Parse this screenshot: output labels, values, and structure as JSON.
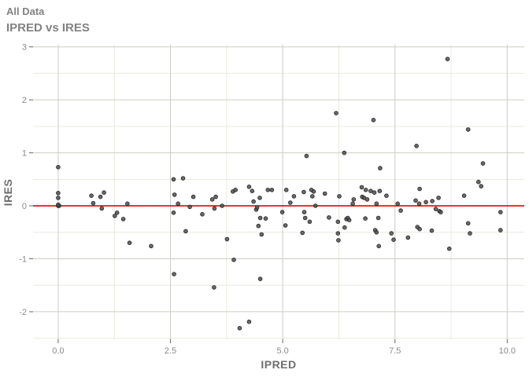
{
  "page": {
    "title": "All Data",
    "subtitle": "IPRED vs IRES"
  },
  "colors": {
    "background": "#ffffff",
    "title_text": "#828282",
    "axis_title_text": "#6e6e6e",
    "tick_label_text": "#8a8a8a",
    "major_grid": "#cdcdc5",
    "minor_grid": "#e9e9e0",
    "tick_mark": "#666666",
    "reference_line": "#ee0000",
    "point_fill": "#4e4e4e",
    "point_stroke": "#262626"
  },
  "chart_data": {
    "type": "scatter",
    "title": "All Data",
    "subtitle": "IPRED vs IRES",
    "xlabel": "IPRED",
    "ylabel": "IRES",
    "xlim": [
      -0.56,
      10.38
    ],
    "ylim": [
      -2.52,
      3.04
    ],
    "grid": true,
    "legend": "none",
    "x_ticks": {
      "values": [
        0,
        2.5,
        5,
        7.5,
        10
      ],
      "labels": [
        "0.0",
        "2.5",
        "5.0",
        "7.5",
        "10.0"
      ]
    },
    "y_ticks": {
      "values": [
        3,
        2,
        1,
        0,
        -1,
        -2
      ],
      "labels": [
        "3",
        "2",
        "1",
        "0",
        "-1",
        "-2"
      ]
    },
    "x_minor": [
      1.25,
      3.75,
      6.25,
      8.75
    ],
    "y_minor": [
      2.5,
      1.5,
      0.5,
      -0.5,
      -1.5,
      -2.5
    ],
    "reference_line": {
      "y": 0
    },
    "points": [
      [
        0.0,
        0.73
      ],
      [
        0.0,
        0.24
      ],
      [
        0.0,
        0.15
      ],
      [
        0.0,
        0.0
      ],
      [
        0.02,
        0.0
      ],
      [
        0.0,
        0.02
      ],
      [
        0.74,
        0.19
      ],
      [
        0.78,
        0.05
      ],
      [
        0.94,
        0.17
      ],
      [
        1.02,
        0.25
      ],
      [
        0.97,
        -0.05
      ],
      [
        1.26,
        -0.19
      ],
      [
        1.31,
        -0.13
      ],
      [
        1.45,
        -0.25
      ],
      [
        1.54,
        0.04
      ],
      [
        1.59,
        -0.7
      ],
      [
        2.07,
        -0.76
      ],
      [
        2.57,
        0.5
      ],
      [
        2.78,
        0.52
      ],
      [
        2.59,
        0.21
      ],
      [
        2.67,
        0.04
      ],
      [
        2.57,
        -0.13
      ],
      [
        2.93,
        -0.02
      ],
      [
        3.01,
        0.17
      ],
      [
        2.84,
        -0.48
      ],
      [
        2.58,
        -1.29
      ],
      [
        3.21,
        -0.16
      ],
      [
        3.43,
        0.12
      ],
      [
        3.51,
        0.17
      ],
      [
        3.48,
        -0.05
      ],
      [
        3.47,
        -1.54
      ],
      [
        3.65,
        0.0
      ],
      [
        3.76,
        -0.63
      ],
      [
        3.89,
        0.27
      ],
      [
        3.95,
        0.3
      ],
      [
        3.91,
        -1.02
      ],
      [
        4.04,
        -2.31
      ],
      [
        4.25,
        0.36
      ],
      [
        4.25,
        -2.19
      ],
      [
        4.32,
        0.28
      ],
      [
        4.35,
        0.08
      ],
      [
        4.41,
        -0.07
      ],
      [
        4.43,
        -0.03
      ],
      [
        4.46,
        -0.38
      ],
      [
        4.49,
        0.15
      ],
      [
        4.5,
        -0.23
      ],
      [
        4.5,
        -1.38
      ],
      [
        4.53,
        -0.54
      ],
      [
        4.62,
        -0.24
      ],
      [
        4.67,
        0.3
      ],
      [
        4.76,
        0.3
      ],
      [
        4.99,
        -0.12
      ],
      [
        5.06,
        -0.37
      ],
      [
        5.08,
        0.3
      ],
      [
        5.17,
        0.06
      ],
      [
        5.25,
        0.18
      ],
      [
        5.44,
        -0.51
      ],
      [
        5.47,
        0.26
      ],
      [
        5.48,
        -0.12
      ],
      [
        5.5,
        -0.23
      ],
      [
        5.53,
        0.94
      ],
      [
        5.6,
        -0.3
      ],
      [
        5.64,
        0.3
      ],
      [
        5.66,
        0.18
      ],
      [
        5.69,
        0.27
      ],
      [
        5.73,
        0.0
      ],
      [
        5.94,
        0.23
      ],
      [
        6.03,
        -0.22
      ],
      [
        6.19,
        1.75
      ],
      [
        6.23,
        -0.3
      ],
      [
        6.23,
        -0.52
      ],
      [
        6.24,
        -0.65
      ],
      [
        6.26,
        0.18
      ],
      [
        6.37,
        1.0
      ],
      [
        6.38,
        -0.41
      ],
      [
        6.42,
        -0.25
      ],
      [
        6.45,
        -0.23
      ],
      [
        6.48,
        -0.27
      ],
      [
        6.56,
        0.04
      ],
      [
        6.58,
        0.12
      ],
      [
        6.76,
        0.35
      ],
      [
        6.77,
        0.17
      ],
      [
        6.81,
        0.15
      ],
      [
        6.84,
        -0.24
      ],
      [
        6.85,
        0.3
      ],
      [
        6.88,
        0.12
      ],
      [
        6.96,
        0.28
      ],
      [
        7.02,
        1.62
      ],
      [
        7.04,
        0.25
      ],
      [
        7.06,
        -0.46
      ],
      [
        7.09,
        0.04
      ],
      [
        7.09,
        -0.5
      ],
      [
        7.13,
        -0.23
      ],
      [
        7.14,
        -0.76
      ],
      [
        7.16,
        0.28
      ],
      [
        7.17,
        0.71
      ],
      [
        7.31,
        0.19
      ],
      [
        7.42,
        -0.52
      ],
      [
        7.47,
        -0.64
      ],
      [
        7.56,
        0.04
      ],
      [
        7.63,
        -0.09
      ],
      [
        7.79,
        -0.6
      ],
      [
        7.96,
        0.1
      ],
      [
        7.98,
        1.13
      ],
      [
        8.0,
        -0.4
      ],
      [
        8.04,
        0.04
      ],
      [
        8.05,
        0.32
      ],
      [
        8.05,
        -0.44
      ],
      [
        8.19,
        0.07
      ],
      [
        8.32,
        -0.47
      ],
      [
        8.33,
        0.09
      ],
      [
        8.41,
        -0.06
      ],
      [
        8.47,
        0.15
      ],
      [
        8.49,
        -0.1
      ],
      [
        8.52,
        -0.12
      ],
      [
        8.67,
        2.77
      ],
      [
        8.71,
        -0.81
      ],
      [
        9.04,
        0.19
      ],
      [
        9.13,
        1.44
      ],
      [
        9.13,
        -0.33
      ],
      [
        9.17,
        -0.52
      ],
      [
        9.36,
        0.45
      ],
      [
        9.42,
        0.37
      ],
      [
        9.46,
        0.8
      ],
      [
        9.85,
        -0.12
      ],
      [
        9.85,
        -0.46
      ]
    ]
  }
}
